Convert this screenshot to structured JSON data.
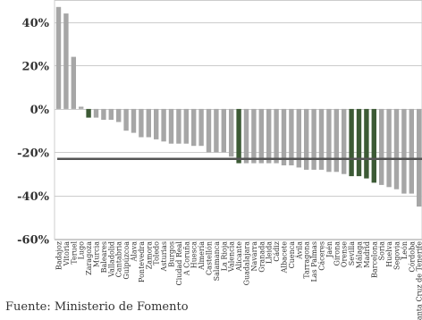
{
  "source": "Fuente: Ministerio de Fomento",
  "chart_data": {
    "type": "bar",
    "ylim": [
      -60,
      50
    ],
    "yticks": [
      "40%",
      "20%",
      "0%",
      "-20%",
      "-40%",
      "-60%"
    ],
    "ytick_values": [
      40,
      20,
      0,
      -20,
      -40,
      -60
    ],
    "grid": true,
    "reference_line": -23,
    "colors": {
      "normal": "#a6a6a6",
      "highlight": "#3c5a35",
      "reference": "#545454",
      "axis": "#cccccc"
    },
    "categories": [
      "Badajoz",
      "Vitoria",
      "Teruel",
      "Lugo",
      "Zaragoza",
      "Murcia",
      "Baleares",
      "Valladolid",
      "Cantabria",
      "Guipúzcoa",
      "Álava",
      "Pontevedra",
      "Zamora",
      "Toledo",
      "Asturias",
      "Burgos",
      "Ciudad Real",
      "A Coruña",
      "Huesca",
      "Almería",
      "Castellón",
      "Salamanca",
      "La Rioja",
      "Valencia",
      "Alicante",
      "Guadalajara",
      "Navarra",
      "Granada",
      "Lleida",
      "Cádiz",
      "Albacete",
      "Cuenca",
      "Ávila",
      "Tarragona",
      "Las Palmas",
      "Cáceres",
      "Jaén",
      "Girona",
      "Orense",
      "Sevilla",
      "Málaga",
      "Madrid",
      "Barcelona",
      "Soria",
      "Huelva",
      "Segovia",
      "León",
      "Córdoba",
      "Santa Cruz de Tenerife"
    ],
    "values": [
      47,
      44,
      24,
      1,
      -4,
      -4,
      -5,
      -5,
      -6,
      -10,
      -11,
      -13,
      -13,
      -14,
      -15,
      -16,
      -16,
      -16,
      -17,
      -17,
      -20,
      -20,
      -20,
      -22,
      -25,
      -25,
      -25,
      -25,
      -25,
      -25,
      -26,
      -26,
      -27,
      -28,
      -28,
      -28,
      -29,
      -29,
      -30,
      -31,
      -31,
      -32,
      -34,
      -35,
      -36,
      -37,
      -39,
      -39,
      -45
    ],
    "highlight": [
      false,
      false,
      false,
      false,
      true,
      false,
      false,
      false,
      false,
      false,
      false,
      false,
      false,
      false,
      false,
      false,
      false,
      false,
      false,
      false,
      false,
      false,
      false,
      false,
      true,
      false,
      false,
      false,
      false,
      false,
      false,
      false,
      false,
      false,
      false,
      false,
      false,
      false,
      false,
      true,
      true,
      true,
      true,
      false,
      false,
      false,
      false,
      false,
      false
    ]
  }
}
